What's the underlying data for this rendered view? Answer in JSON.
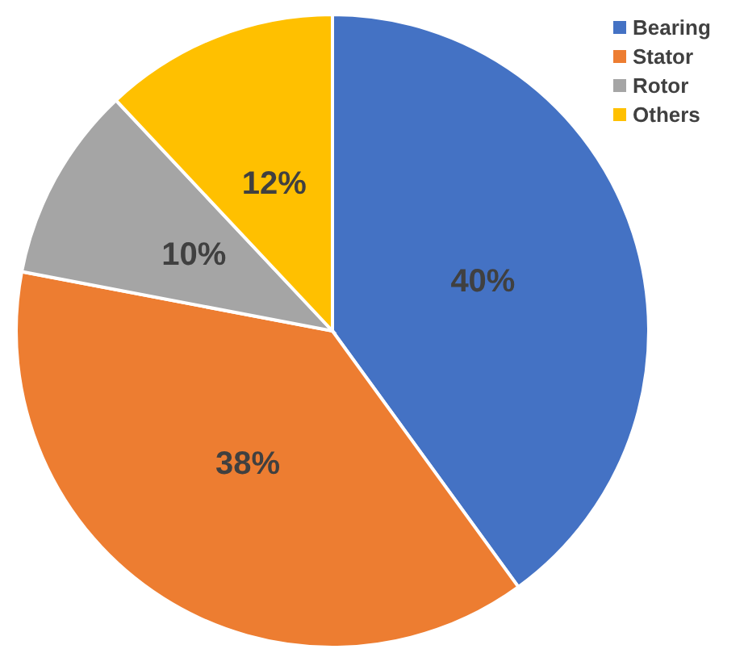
{
  "chart_data": {
    "type": "pie",
    "categories": [
      "Bearing",
      "Stator",
      "Rotor",
      "Others"
    ],
    "values": [
      40,
      38,
      10,
      12
    ],
    "colors": [
      "#4472c4",
      "#ed7d31",
      "#a5a5a5",
      "#ffc000"
    ],
    "value_labels": [
      "40%",
      "38%",
      "10%",
      "12%"
    ],
    "legend": "top right"
  }
}
